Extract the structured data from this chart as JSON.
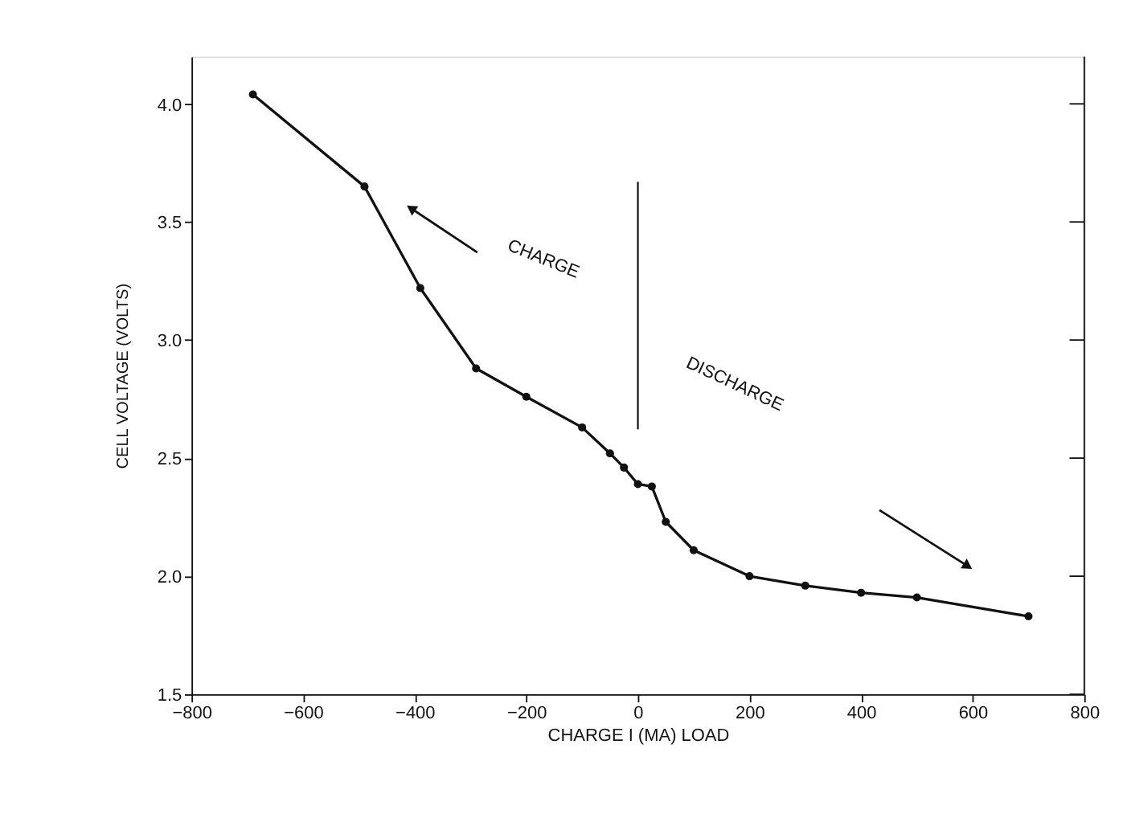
{
  "chart_data": {
    "type": "line",
    "xlabel": "CHARGE I (MA) LOAD",
    "ylabel": "CELL VOLTAGE (VOLTS)",
    "x": [
      -690,
      -490,
      -390,
      -290,
      -200,
      -100,
      -50,
      -25,
      0,
      25,
      50,
      100,
      200,
      300,
      400,
      500,
      700
    ],
    "series": [
      {
        "color": "#111111",
        "values": [
          4.04,
          3.65,
          3.22,
          2.88,
          2.76,
          2.63,
          2.52,
          2.46,
          2.39,
          2.38,
          2.23,
          2.11,
          2.0,
          1.96,
          1.93,
          1.91,
          1.83
        ]
      }
    ],
    "xlim": [
      -800,
      800
    ],
    "xticks": [
      -800,
      -600,
      -400,
      -200,
      0,
      200,
      400,
      600,
      800
    ],
    "ylim": [
      1.5,
      4.2
    ],
    "yticks": [
      1.5,
      {
        "value": 2,
        "label": "2.0"
      },
      2.5,
      {
        "value": 3,
        "label": "3.0"
      },
      3.5,
      {
        "value": 4,
        "label": "4.0"
      }
    ],
    "ref_lines": [
      {
        "axis": "x",
        "value": 0,
        "color": "#111111"
      }
    ],
    "marker": "circle",
    "line_style": "solid",
    "grid": false,
    "annotations": [
      "CHARGE",
      "DISCHARGE"
    ]
  }
}
